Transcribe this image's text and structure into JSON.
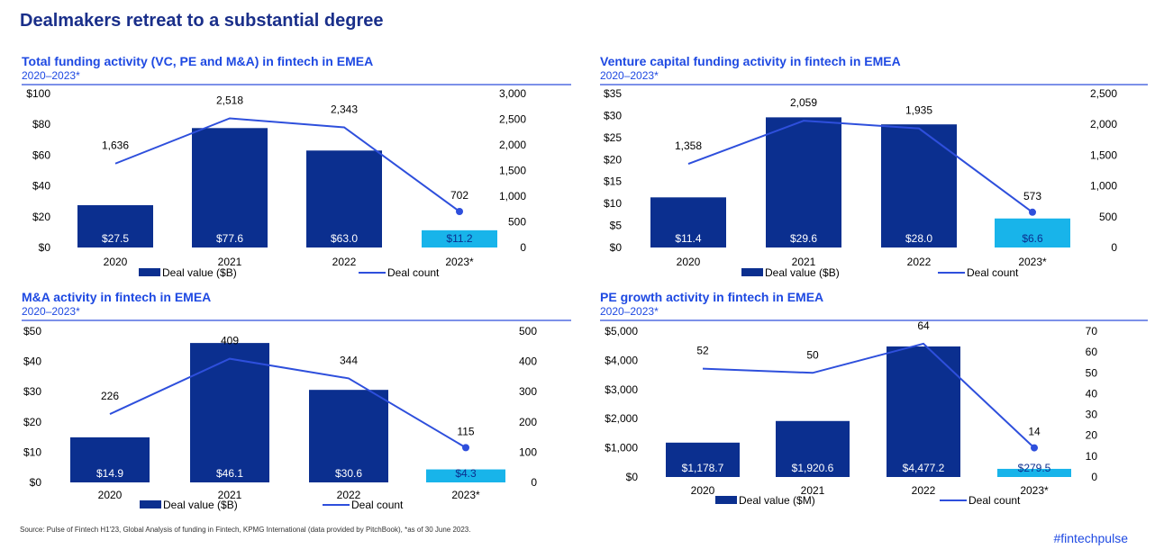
{
  "page": {
    "title": "Dealmakers retreat to a substantial degree",
    "source": "Source: Pulse of Fintech H1'23, Global Analysis of funding in Fintech, KPMG International (data provided by PitchBook), *as of 30 June 2023.",
    "hashtag": "#fintechpulse"
  },
  "colors": {
    "bar_dark": "#0b2f8f",
    "bar_light": "#18b4ea",
    "line": "#2e4fdc",
    "title": "#1e49e2",
    "rule": "#2e4fdc"
  },
  "chart_data": [
    {
      "type": "bar",
      "title": "Total funding activity (VC, PE and M&A) in fintech in EMEA",
      "subtitle": "2020–2023*",
      "categories": [
        "2020",
        "2021",
        "2022",
        "2023*"
      ],
      "series": [
        {
          "name": "Deal value ($B)",
          "axis": "left",
          "values": [
            27.5,
            77.6,
            63.0,
            11.2
          ],
          "labels": [
            "$27.5",
            "$77.6",
            "$63.0",
            "$11.2"
          ]
        },
        {
          "name": "Deal count",
          "axis": "right",
          "type": "line",
          "values": [
            1636,
            2518,
            2343,
            702
          ],
          "labels": [
            "1,636",
            "2,518",
            "2,343",
            "702"
          ]
        }
      ],
      "left_axis": {
        "ylim": [
          0,
          100
        ],
        "ticks": [
          "$0",
          "$20",
          "$40",
          "$60",
          "$80",
          "$100"
        ]
      },
      "right_axis": {
        "ylim": [
          0,
          3000
        ],
        "ticks": [
          "0",
          "500",
          "1,000",
          "1,500",
          "2,000",
          "2,500",
          "3,000"
        ]
      },
      "highlight_last": true,
      "legend": "bottom"
    },
    {
      "type": "bar",
      "title": "Venture capital funding activity in fintech in EMEA",
      "subtitle": "2020–2023*",
      "categories": [
        "2020",
        "2021",
        "2022",
        "2023*"
      ],
      "series": [
        {
          "name": "Deal value ($B)",
          "axis": "left",
          "values": [
            11.4,
            29.6,
            28.0,
            6.6
          ],
          "labels": [
            "$11.4",
            "$29.6",
            "$28.0",
            "$6.6"
          ]
        },
        {
          "name": "Deal count",
          "axis": "right",
          "type": "line",
          "values": [
            1358,
            2059,
            1935,
            573
          ],
          "labels": [
            "1,358",
            "2,059",
            "1,935",
            "573"
          ]
        }
      ],
      "left_axis": {
        "ylim": [
          0,
          35
        ],
        "ticks": [
          "$0",
          "$5",
          "$10",
          "$15",
          "$20",
          "$25",
          "$30",
          "$35"
        ]
      },
      "right_axis": {
        "ylim": [
          0,
          2500
        ],
        "ticks": [
          "0",
          "500",
          "1,000",
          "1,500",
          "2,000",
          "2,500"
        ]
      },
      "highlight_last": true,
      "legend": "bottom"
    },
    {
      "type": "bar",
      "title": "M&A activity in fintech in EMEA",
      "subtitle": "2020–2023*",
      "categories": [
        "2020",
        "2021",
        "2022",
        "2023*"
      ],
      "series": [
        {
          "name": "Deal value ($B)",
          "axis": "left",
          "values": [
            14.9,
            46.1,
            30.6,
            4.3
          ],
          "labels": [
            "$14.9",
            "$46.1",
            "$30.6",
            "$4.3"
          ]
        },
        {
          "name": "Deal count",
          "axis": "right",
          "type": "line",
          "values": [
            226,
            409,
            344,
            115
          ],
          "labels": [
            "226",
            "409",
            "344",
            "115"
          ]
        }
      ],
      "left_axis": {
        "ylim": [
          0,
          50
        ],
        "ticks": [
          "$0",
          "$10",
          "$20",
          "$30",
          "$40",
          "$50"
        ]
      },
      "right_axis": {
        "ylim": [
          0,
          500
        ],
        "ticks": [
          "0",
          "100",
          "200",
          "300",
          "400",
          "500"
        ]
      },
      "highlight_last": true,
      "legend": "bottom"
    },
    {
      "type": "bar",
      "title": "PE growth activity in fintech in EMEA",
      "subtitle": "2020–2023*",
      "categories": [
        "2020",
        "2021",
        "2022",
        "2023*"
      ],
      "series": [
        {
          "name": "Deal value ($M)",
          "axis": "left",
          "values": [
            1178.7,
            1920.6,
            4477.2,
            279.5
          ],
          "labels": [
            "$1,178.7",
            "$1,920.6",
            "$4,477.2",
            "$279.5"
          ]
        },
        {
          "name": "Deal count",
          "axis": "right",
          "type": "line",
          "values": [
            52,
            50,
            64,
            14
          ],
          "labels": [
            "52",
            "50",
            "64",
            "14"
          ]
        }
      ],
      "left_axis": {
        "ylim": [
          0,
          5000
        ],
        "ticks": [
          "$0",
          "$1,000",
          "$2,000",
          "$3,000",
          "$4,000",
          "$5,000"
        ]
      },
      "right_axis": {
        "ylim": [
          0,
          70
        ],
        "ticks": [
          "0",
          "10",
          "20",
          "30",
          "40",
          "50",
          "60",
          "70"
        ]
      },
      "highlight_last": true,
      "legend": "bottom"
    }
  ]
}
